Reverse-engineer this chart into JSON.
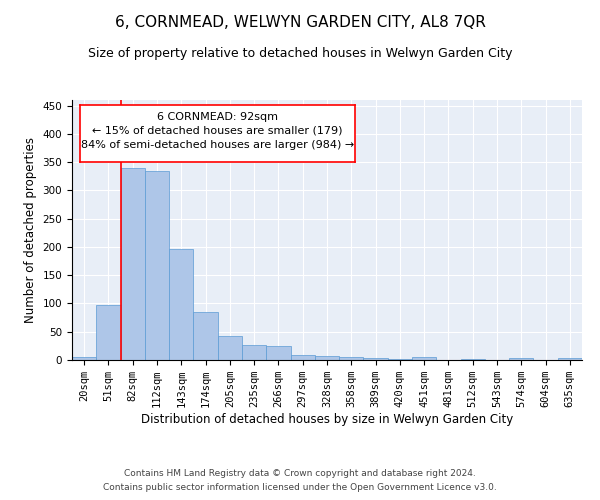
{
  "title": "6, CORNMEAD, WELWYN GARDEN CITY, AL8 7QR",
  "subtitle": "Size of property relative to detached houses in Welwyn Garden City",
  "xlabel": "Distribution of detached houses by size in Welwyn Garden City",
  "ylabel": "Number of detached properties",
  "bar_color": "#aec6e8",
  "bar_edge_color": "#5b9bd5",
  "background_color": "#e8eef7",
  "grid_color": "#ffffff",
  "categories": [
    "20sqm",
    "51sqm",
    "82sqm",
    "112sqm",
    "143sqm",
    "174sqm",
    "205sqm",
    "235sqm",
    "266sqm",
    "297sqm",
    "328sqm",
    "358sqm",
    "389sqm",
    "420sqm",
    "451sqm",
    "481sqm",
    "512sqm",
    "543sqm",
    "574sqm",
    "604sqm",
    "635sqm"
  ],
  "values": [
    6,
    98,
    340,
    335,
    196,
    85,
    42,
    27,
    25,
    9,
    7,
    5,
    3,
    2,
    5,
    0,
    2,
    0,
    3,
    0,
    3
  ],
  "ylim": [
    0,
    460
  ],
  "yticks": [
    0,
    50,
    100,
    150,
    200,
    250,
    300,
    350,
    400,
    450
  ],
  "property_line_x": 1.5,
  "annotation_text": "6 CORNMEAD: 92sqm\n← 15% of detached houses are smaller (179)\n84% of semi-detached houses are larger (984) →",
  "footnote1": "Contains HM Land Registry data © Crown copyright and database right 2024.",
  "footnote2": "Contains public sector information licensed under the Open Government Licence v3.0.",
  "title_fontsize": 11,
  "subtitle_fontsize": 9,
  "xlabel_fontsize": 8.5,
  "ylabel_fontsize": 8.5,
  "tick_fontsize": 7.5,
  "annotation_fontsize": 8,
  "footnote_fontsize": 6.5
}
